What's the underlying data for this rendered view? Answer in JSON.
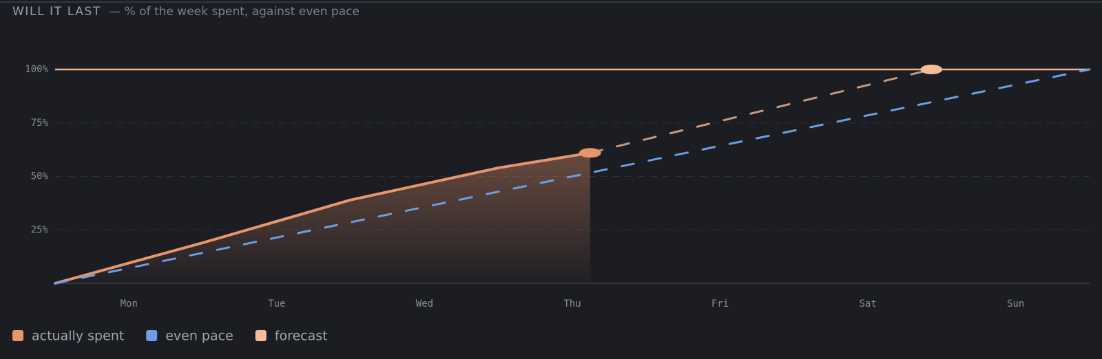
{
  "chart_data": {
    "type": "line",
    "title": "WILL IT LAST",
    "subtitle": "— % of the week spent, against even pace",
    "categories": [
      "Mon",
      "Tue",
      "Wed",
      "Thu",
      "Fri",
      "Sat",
      "Sun"
    ],
    "xlim": [
      0,
      7
    ],
    "ylim": [
      0,
      100
    ],
    "yticks": [
      {
        "value": 25,
        "label": "25%"
      },
      {
        "value": 50,
        "label": "50%"
      },
      {
        "value": 75,
        "label": "75%"
      },
      {
        "value": 100,
        "label": "100%"
      }
    ],
    "grid": true,
    "reference_line": {
      "value": 100,
      "color": "#f2b393"
    },
    "legend": "bottom-left",
    "series": [
      {
        "name": "actually spent",
        "color": "#e8956b",
        "style": "solid",
        "fill": true,
        "marker": "last",
        "x": [
          0,
          1,
          2,
          3,
          3.62
        ],
        "values": [
          0,
          19,
          39,
          54,
          61
        ]
      },
      {
        "name": "even pace",
        "color": "#6a9ee6",
        "style": "dashed",
        "fill": false,
        "marker": "none",
        "x": [
          0,
          7
        ],
        "values": [
          0,
          100
        ]
      },
      {
        "name": "forecast",
        "color": "#f5bb9a",
        "style": "dashed",
        "fill": false,
        "marker": "last",
        "x": [
          3.62,
          5.93
        ],
        "values": [
          61,
          100
        ]
      }
    ]
  }
}
